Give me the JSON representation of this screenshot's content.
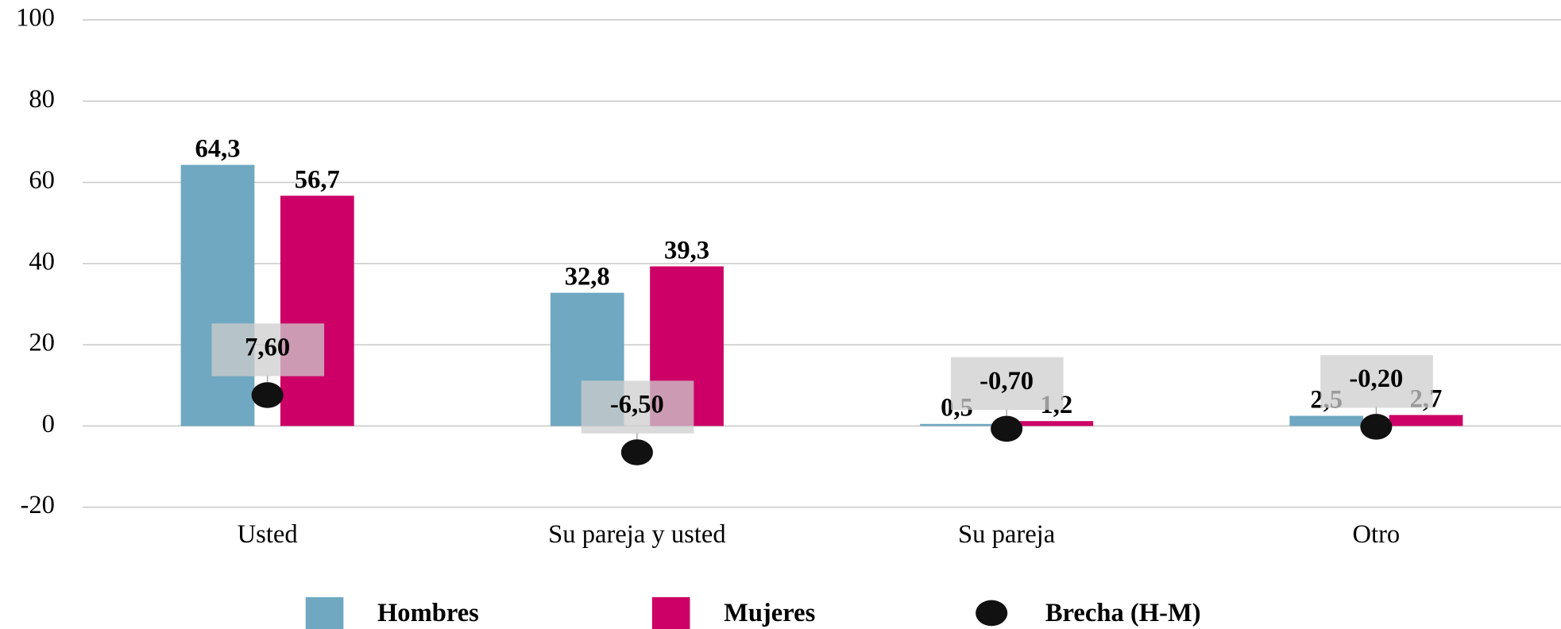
{
  "chart_data": {
    "type": "bar",
    "categories": [
      "Usted",
      "Su pareja y usted",
      "Su pareja",
      "Otro"
    ],
    "series": [
      {
        "name": "Hombres",
        "color": "#6fa8c0",
        "values": [
          64.3,
          32.8,
          0.5,
          2.5
        ],
        "value_labels": [
          "64,3",
          "32,8",
          "0,5",
          "2,5"
        ]
      },
      {
        "name": "Mujeres",
        "color": "#cc0066",
        "values": [
          56.7,
          39.3,
          1.2,
          2.7
        ],
        "value_labels": [
          "56,7",
          "39,3",
          "1,2",
          "2,7"
        ]
      },
      {
        "name": "Brecha (H-M)",
        "type": "scatter",
        "color": "#111111",
        "values": [
          7.6,
          -6.5,
          -0.7,
          -0.2
        ],
        "value_labels": [
          "7,60",
          "-6,50",
          "-0,70",
          "-0,20"
        ]
      }
    ],
    "ylim": [
      -20,
      100
    ],
    "yticks": [
      -20,
      0,
      20,
      40,
      60,
      80,
      100
    ],
    "grid": true,
    "legend": "bottom"
  }
}
